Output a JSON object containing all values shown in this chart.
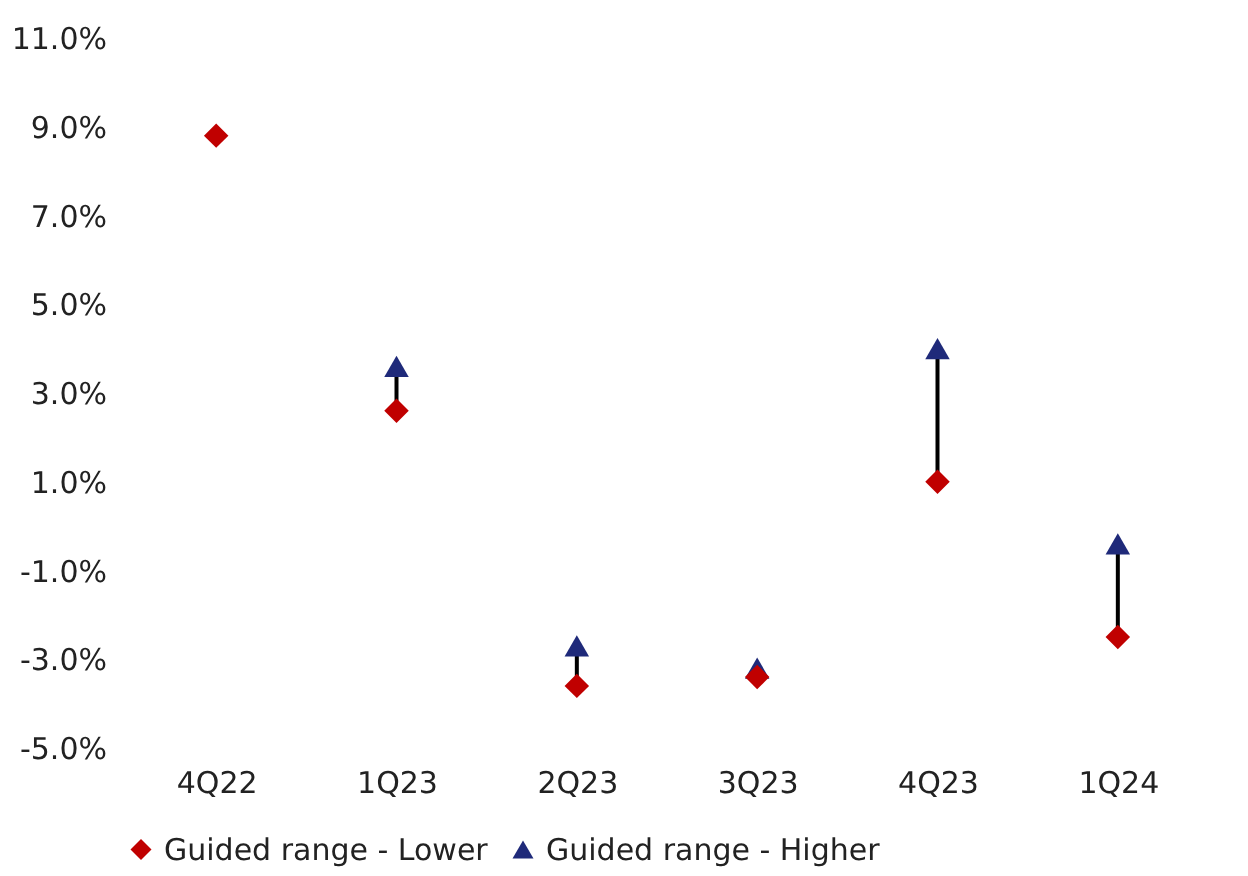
{
  "chart_data": {
    "type": "scatter",
    "categories": [
      "4Q22",
      "1Q23",
      "2Q23",
      "3Q23",
      "4Q23",
      "1Q24"
    ],
    "series": [
      {
        "name": "Guided range - Lower",
        "color": "#c00000",
        "marker": "diamond",
        "values": [
          8.8,
          2.6,
          -3.6,
          -3.4,
          1.0,
          -2.5
        ]
      },
      {
        "name": "Guided range - Higher",
        "color": "#1f2a7a",
        "marker": "triangle",
        "values": [
          null,
          3.6,
          -2.7,
          -3.2,
          4.0,
          -0.4
        ]
      }
    ],
    "ylim": [
      -5.0,
      11.0
    ],
    "yticks": [
      {
        "value": -5,
        "label": "-5.0%"
      },
      {
        "value": -3,
        "label": "-3.0%"
      },
      {
        "value": -1,
        "label": "-1.0%"
      },
      {
        "value": 1,
        "label": "1.0%"
      },
      {
        "value": 3,
        "label": "3.0%"
      },
      {
        "value": 5,
        "label": "5.0%"
      },
      {
        "value": 7,
        "label": "7.0%"
      },
      {
        "value": 9,
        "label": "9.0%"
      },
      {
        "value": 11,
        "label": "11.0%"
      }
    ],
    "grid": false,
    "legend": "bottom"
  }
}
